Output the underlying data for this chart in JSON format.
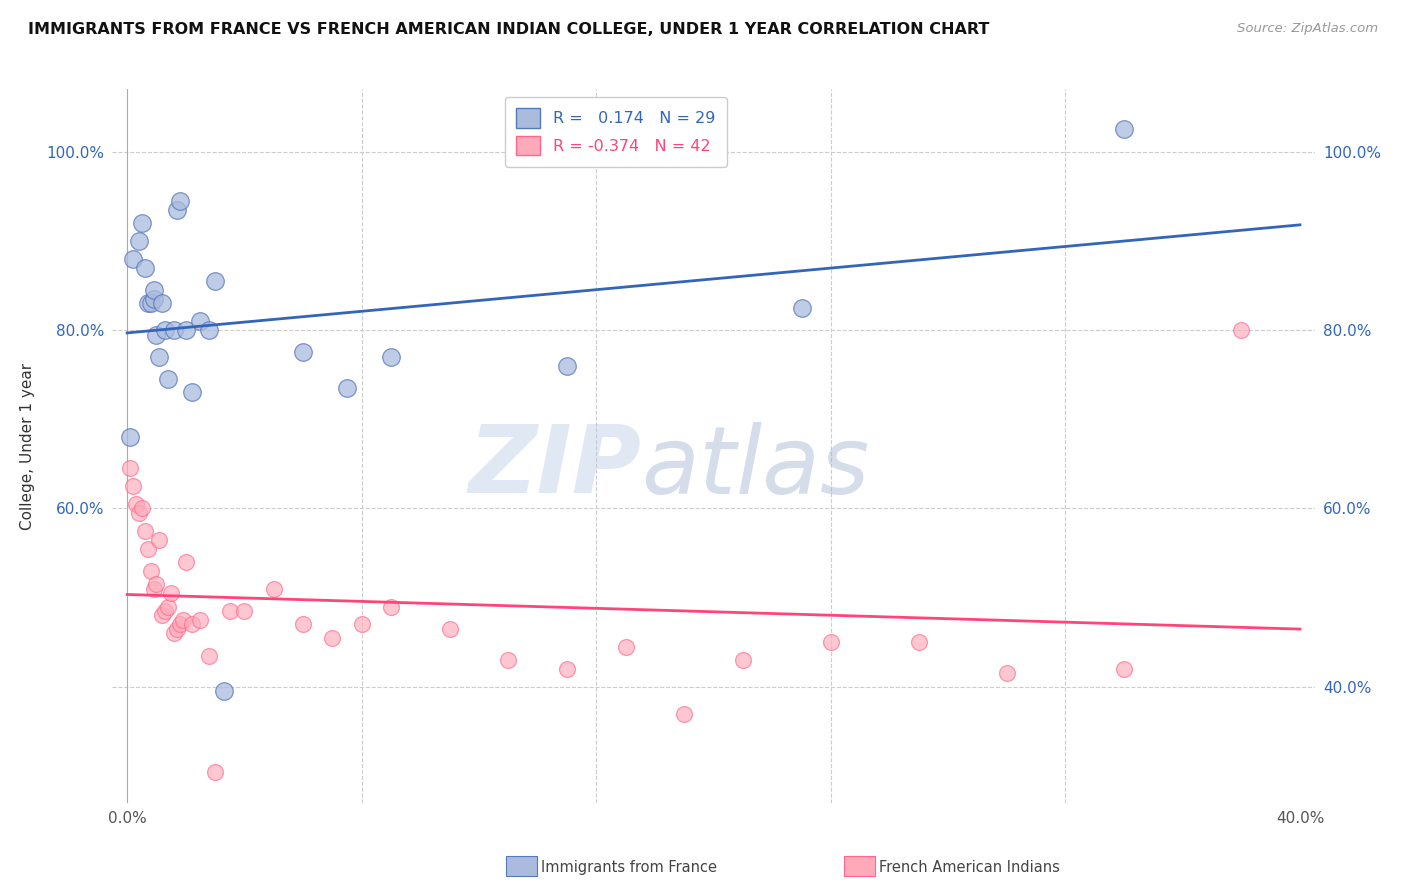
{
  "title": "IMMIGRANTS FROM FRANCE VS FRENCH AMERICAN INDIAN COLLEGE, UNDER 1 YEAR CORRELATION CHART",
  "source": "Source: ZipAtlas.com",
  "ylabel": "College, Under 1 year",
  "xlim": [
    -0.005,
    0.405
  ],
  "ylim": [
    0.27,
    1.07
  ],
  "blue_color": "#AABBDD",
  "pink_color": "#FFAABB",
  "blue_edge_color": "#5577BB",
  "pink_edge_color": "#FF6688",
  "blue_line_color": "#3366BB",
  "pink_line_color": "#FF4477",
  "legend_R_blue": "0.174",
  "legend_N_blue": "29",
  "legend_R_pink": "-0.374",
  "legend_N_pink": "42",
  "blue_x": [
    0.001,
    0.002,
    0.004,
    0.005,
    0.006,
    0.007,
    0.008,
    0.009,
    0.009,
    0.01,
    0.011,
    0.012,
    0.013,
    0.014,
    0.016,
    0.017,
    0.018,
    0.02,
    0.022,
    0.025,
    0.028,
    0.03,
    0.033,
    0.06,
    0.075,
    0.09,
    0.15,
    0.23,
    0.34
  ],
  "blue_y": [
    0.68,
    0.88,
    0.9,
    0.92,
    0.87,
    0.83,
    0.83,
    0.835,
    0.845,
    0.795,
    0.77,
    0.83,
    0.8,
    0.745,
    0.8,
    0.935,
    0.945,
    0.8,
    0.73,
    0.81,
    0.8,
    0.855,
    0.395,
    0.775,
    0.735,
    0.77,
    0.76,
    0.825,
    1.025
  ],
  "pink_x": [
    0.001,
    0.002,
    0.003,
    0.004,
    0.005,
    0.006,
    0.007,
    0.008,
    0.009,
    0.01,
    0.011,
    0.012,
    0.013,
    0.014,
    0.015,
    0.016,
    0.017,
    0.018,
    0.019,
    0.02,
    0.022,
    0.025,
    0.028,
    0.03,
    0.035,
    0.04,
    0.05,
    0.06,
    0.07,
    0.08,
    0.09,
    0.11,
    0.13,
    0.15,
    0.17,
    0.19,
    0.21,
    0.24,
    0.27,
    0.3,
    0.34,
    0.38
  ],
  "pink_y": [
    0.645,
    0.625,
    0.605,
    0.595,
    0.6,
    0.575,
    0.555,
    0.53,
    0.51,
    0.515,
    0.565,
    0.48,
    0.485,
    0.49,
    0.505,
    0.46,
    0.465,
    0.47,
    0.475,
    0.54,
    0.47,
    0.475,
    0.435,
    0.305,
    0.485,
    0.485,
    0.51,
    0.47,
    0.455,
    0.47,
    0.49,
    0.465,
    0.43,
    0.42,
    0.445,
    0.37,
    0.43,
    0.45,
    0.45,
    0.415,
    0.42,
    0.8
  ],
  "watermark_zip": "ZIP",
  "watermark_atlas": "atlas",
  "background_color": "#FFFFFF",
  "grid_color": "#CCCCCC",
  "right_y_ticks": [
    0.4,
    0.6,
    0.8,
    1.0
  ],
  "right_y_labels": [
    "40.0%",
    "60.0%",
    "80.0%",
    "100.0%"
  ],
  "left_y_ticks": [
    0.6,
    0.8,
    1.0
  ],
  "left_y_labels": [
    "60.0%",
    "80.0%",
    "100.0%"
  ],
  "x_ticks": [
    0.0,
    0.08,
    0.16,
    0.24,
    0.32,
    0.4
  ],
  "x_labels": [
    "0.0%",
    "",
    "",
    "",
    "",
    "40.0%"
  ],
  "bottom_label1": "Immigrants from France",
  "bottom_label2": "French American Indians"
}
